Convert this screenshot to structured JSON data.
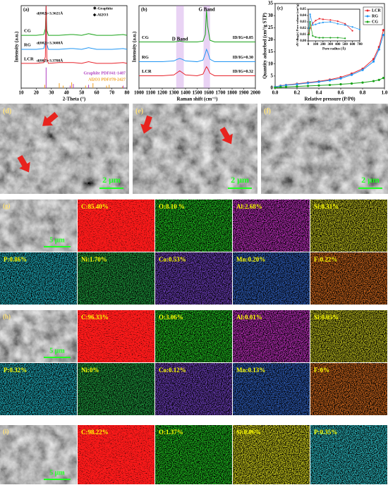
{
  "chart_data": [
    {
      "type": "line",
      "label": "(a)",
      "xlabel": "2-Theta (°)",
      "ylabel": "Intensity (a.u.)",
      "x": [
        10,
        20,
        25,
        26,
        26.5,
        27,
        28,
        35,
        42.4,
        44.5,
        50,
        54.6,
        60,
        70,
        77.5,
        80
      ],
      "xlim": [
        10,
        80
      ],
      "xticks": [
        10,
        20,
        30,
        40,
        50,
        60,
        70,
        80
      ],
      "ylim": [
        0,
        100
      ],
      "series": [
        {
          "name": "CG",
          "color": "#1aa31a",
          "values": [
            64,
            64,
            65,
            72,
            100,
            70,
            64,
            64,
            65,
            65,
            64,
            66,
            64,
            64,
            65,
            64
          ]
        },
        {
          "name": "RG",
          "color": "#2196f3",
          "values": [
            47,
            47,
            48,
            55,
            100,
            53,
            47,
            47,
            48,
            48,
            47,
            49,
            47,
            47,
            48,
            47
          ]
        },
        {
          "name": "LCR",
          "color": "#e8242c",
          "values": [
            30,
            30,
            31,
            38,
            100,
            36,
            30,
            31,
            31,
            31,
            30,
            32,
            30,
            30,
            31,
            30
          ]
        }
      ],
      "references": [
        {
          "name": "Graphite PDF#41-1487",
          "color": "#b040c0",
          "x": [
            26.5,
            42.4,
            44.5,
            54.6,
            77.5
          ],
          "heights": [
            25,
            3,
            5,
            4,
            3
          ]
        },
        {
          "name": "Al2O3 PDF#78-2427",
          "color": "#f0a020",
          "x": [
            25.6,
            35.2,
            37.8,
            43.4,
            52.6,
            57.5,
            66.5,
            68.2,
            76.9
          ],
          "heights": [
            4,
            6,
            3,
            7,
            3,
            6,
            3,
            4,
            2
          ]
        }
      ],
      "annotations": [
        "d(002)=3.3621Å",
        "d(002)=3.3608Å",
        "d(002)=3.3708Å",
        "✱-Graphite",
        "◆-Al2O3"
      ]
    },
    {
      "type": "line",
      "label": "(b)",
      "xlabel": "Raman shift (cm⁻¹)",
      "ylabel": "Intensity (a.u.)",
      "x": [
        1000,
        1100,
        1200,
        1300,
        1330,
        1350,
        1370,
        1400,
        1500,
        1550,
        1570,
        1580,
        1590,
        1610,
        1650,
        1700,
        1800,
        1900,
        2000
      ],
      "xlim": [
        1000,
        2000
      ],
      "xticks": [
        1000,
        1100,
        1200,
        1300,
        1400,
        1500,
        1600,
        1700,
        1800,
        1900,
        2000
      ],
      "ylim": [
        0,
        100
      ],
      "series": [
        {
          "name": "CG",
          "color": "#1aa31a",
          "label": "ID/IG=0.05",
          "values": [
            56,
            56,
            56,
            56,
            56.5,
            57,
            56.5,
            56,
            56,
            57,
            65,
            94,
            75,
            58,
            56,
            56,
            56,
            56,
            56
          ]
        },
        {
          "name": "RG",
          "color": "#2196f3",
          "label": "ID/IG=0.30",
          "values": [
            32,
            32,
            32,
            33,
            35,
            36,
            35,
            33,
            32,
            34,
            42,
            47,
            44,
            35,
            32,
            32,
            32,
            32,
            32
          ]
        },
        {
          "name": "LCR",
          "color": "#e8242c",
          "label": "ID/IG=0.32",
          "values": [
            15,
            15,
            15,
            16,
            19,
            21,
            19,
            16,
            15,
            17,
            23,
            26,
            24,
            18,
            15,
            15,
            15,
            15,
            15
          ]
        }
      ],
      "bands": [
        {
          "text": "D Band",
          "x": [
            1320,
            1385
          ],
          "color": "#c080e0"
        },
        {
          "text": "G Band",
          "x": [
            1555,
            1610
          ],
          "color": "#c080e0"
        }
      ]
    },
    {
      "type": "line",
      "label": "(c)",
      "xlabel": "Relative pressure (P/P0)",
      "ylabel": "Quantity adsorbed (cm³/g STP)",
      "markers": true,
      "x": [
        0,
        0.05,
        0.1,
        0.2,
        0.3,
        0.4,
        0.5,
        0.6,
        0.7,
        0.8,
        0.9,
        0.95,
        0.99
      ],
      "xlim": [
        0,
        1
      ],
      "xticks": [
        {
          "value": 0,
          "label": "0.0"
        },
        0.2,
        0.4,
        0.6,
        0.8,
        {
          "value": 1,
          "label": "1.0"
        }
      ],
      "ylim": [
        0,
        35
      ],
      "yticks": [
        0,
        5,
        10,
        15,
        20,
        25,
        30,
        35
      ],
      "series": [
        {
          "name": "LCR",
          "color": "#e8242c",
          "values": [
            0.5,
            1,
            1.3,
            1.8,
            2.3,
            2.8,
            3.5,
            4.5,
            6,
            8,
            12,
            17,
            24
          ]
        },
        {
          "name": "RG",
          "color": "#2196f3",
          "values": [
            0.5,
            0.9,
            1.2,
            1.6,
            2.1,
            2.6,
            3.2,
            4,
            5.5,
            7.5,
            11,
            16,
            22
          ]
        },
        {
          "name": "CG",
          "color": "#1aa31a",
          "values": [
            0.2,
            0.4,
            0.5,
            0.7,
            0.9,
            1.1,
            1.3,
            1.6,
            1.9,
            2.3,
            2.9,
            3.4,
            4.2
          ]
        }
      ],
      "legend": "upper right"
    },
    {
      "type": "line",
      "xlabel": "Pore radius (Å)",
      "ylabel": "dV/dlog(r) Pore volume (cm³/g)",
      "markers": true,
      "x": [
        10,
        25,
        60,
        100,
        150,
        200,
        300,
        400,
        500,
        600,
        700
      ],
      "xlim": [
        0,
        700
      ],
      "xticks": [
        0,
        100,
        200,
        300,
        400,
        500,
        600,
        700
      ],
      "ylim": [
        0,
        0.05
      ],
      "yticks": [
        {
          "value": 0,
          "label": "0.00"
        },
        0.01,
        0.02,
        0.03,
        0.04,
        0.05
      ],
      "series": [
        {
          "color": "#e8242c",
          "values": [
            0.012,
            0.02,
            0.028,
            0.032,
            0.035,
            0.034,
            0.033,
            0.031,
            0.027,
            0.016,
            null
          ]
        },
        {
          "color": "#2196f3",
          "values": [
            0.02,
            0.042,
            0.025,
            0.026,
            0.028,
            0.029,
            0.03,
            0.027,
            0.025,
            0.022,
            0.018
          ]
        },
        {
          "color": "#1aa31a",
          "values": [
            0.01,
            0.03,
            0.008,
            0.006,
            0.005,
            0.005,
            0.005,
            0.005,
            0.004,
            null,
            null
          ]
        }
      ]
    }
  ],
  "sem": [
    {
      "label": "(d)",
      "scale": "2 μm"
    },
    {
      "label": "(e)",
      "scale": "2 μm"
    },
    {
      "label": "(f)",
      "scale": "2 μm"
    }
  ],
  "eds": [
    {
      "label": "(g)",
      "scale": "5 μm",
      "tiles": [
        {
          "text": "C:85.40%",
          "color": "#ff1a1a",
          "dense": true
        },
        {
          "text": "O:8.10 %",
          "color": "#22cc22"
        },
        {
          "text": "Al:2.68%",
          "color": "#cc33cc"
        },
        {
          "text": "Si:0.31%",
          "color": "#c8c820"
        },
        {
          "text": "P:0.86%",
          "color": "#22b8c8"
        },
        {
          "text": "Ni:1.70%",
          "color": "#22aa44"
        },
        {
          "text": "Co:0.53%",
          "color": "#7744cc"
        },
        {
          "text": "Mn:0.20%",
          "color": "#3366cc"
        },
        {
          "text": "F:0.22%",
          "color": "#e07020"
        }
      ]
    },
    {
      "label": "(h)",
      "scale": "5 μm",
      "tiles": [
        {
          "text": "C:96.33%",
          "color": "#ff1a1a",
          "dense": true
        },
        {
          "text": "O:3.06%",
          "color": "#22cc22"
        },
        {
          "text": "Al:0.01%",
          "color": "#cc33cc"
        },
        {
          "text": "Si:0.05%",
          "color": "#c8c820"
        },
        {
          "text": "P:0.32%",
          "color": "#22b8c8"
        },
        {
          "text": "Ni:0%",
          "color": "#22aa44"
        },
        {
          "text": "Co:0.12%",
          "color": "#7744cc"
        },
        {
          "text": "Mn:0.13%",
          "color": "#3366cc"
        },
        {
          "text": "F:0%",
          "color": "#e07020"
        }
      ]
    },
    {
      "label": "(i)",
      "scale": "5 μm",
      "tiles": [
        {
          "text": "C:98.22%",
          "color": "#ff1a1a",
          "dense": true
        },
        {
          "text": "O:1.37%",
          "color": "#22cc22"
        },
        {
          "text": "Si:0.06%",
          "color": "#e0e020"
        },
        {
          "text": "P:0.35%",
          "color": "#30c8d0"
        }
      ]
    }
  ]
}
